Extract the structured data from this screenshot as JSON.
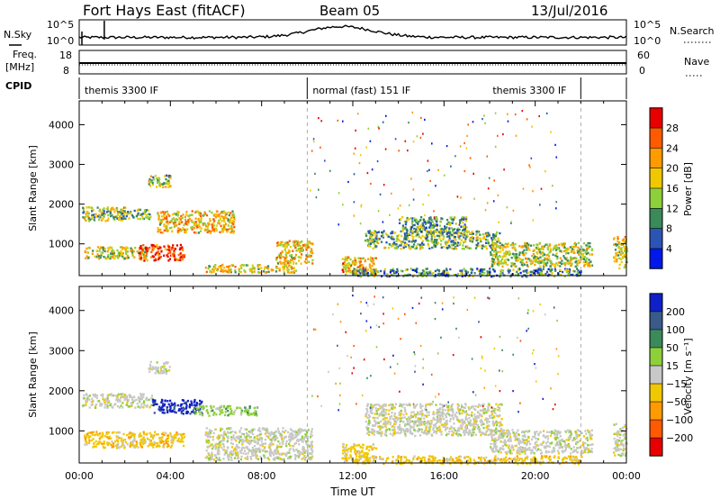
{
  "header": {
    "title": "Fort Hays East (fitACF)",
    "beam": "Beam 05",
    "date": "13/Jul/2016"
  },
  "top_panels": {
    "nsky_label": "N.Sky",
    "nsky_ticks": [
      "10^5",
      "10^0"
    ],
    "nsearch_label": "N.Search",
    "nsearch_ticks": [
      "10^5",
      "10^0"
    ],
    "freq_label": "Freq.",
    "freq_unit": "[MHz]",
    "freq_ticks": [
      "18",
      "8"
    ],
    "nave_label": "Nave",
    "nave_ticks": [
      "60",
      "0"
    ],
    "cpid_label": "CPID",
    "cpid_segments": [
      {
        "text": "themis 3300 IF",
        "start_h": 0,
        "end_h": 10
      },
      {
        "text": "normal (fast) 151 IF",
        "start_h": 10,
        "end_h": 22
      },
      {
        "text": "themis 3300 IF",
        "start_h": 22,
        "end_h": 24
      }
    ]
  },
  "chart_data": [
    {
      "type": "heatmap",
      "name": "power",
      "ylabel": "Slant Range [km]",
      "colorbar_label": "Power [dB]",
      "colorbar_ticks": [
        "28",
        "24",
        "20",
        "16",
        "12",
        "8",
        "4"
      ],
      "colorbar_colors": [
        "#e80000",
        "#ff5a00",
        "#ff9a00",
        "#f0c800",
        "#8ed03a",
        "#3a8a5a",
        "#2b55b5",
        "#0018e8"
      ],
      "x_ticks": [
        "00:00",
        "04:00",
        "08:00",
        "12:00",
        "16:00",
        "20:00",
        "00:00"
      ],
      "xlim": [
        0,
        24
      ],
      "y_ticks": [
        "4000",
        "3000",
        "2000",
        "1000"
      ],
      "ylim": [
        200,
        4600
      ],
      "bands": [
        {
          "t0": 0.1,
          "t1": 2.0,
          "r0": 1600,
          "r1": 1950,
          "level": 0.45
        },
        {
          "t0": 1.8,
          "t1": 3.2,
          "r0": 1650,
          "r1": 1900,
          "level": 0.4
        },
        {
          "t0": 0.2,
          "t1": 3.0,
          "r0": 650,
          "r1": 950,
          "level": 0.5
        },
        {
          "t0": 2.6,
          "t1": 4.6,
          "r0": 600,
          "r1": 1000,
          "level": 0.85
        },
        {
          "t0": 3.4,
          "t1": 6.8,
          "r0": 1300,
          "r1": 1850,
          "level": 0.6
        },
        {
          "t0": 3.0,
          "t1": 4.0,
          "r0": 2450,
          "r1": 2750,
          "level": 0.45
        },
        {
          "t0": 5.5,
          "t1": 9.5,
          "r0": 300,
          "r1": 500,
          "level": 0.55
        },
        {
          "t0": 8.6,
          "t1": 10.2,
          "r0": 500,
          "r1": 1100,
          "level": 0.6
        },
        {
          "t0": 11.5,
          "t1": 13.0,
          "r0": 250,
          "r1": 700,
          "level": 0.65
        },
        {
          "t0": 12.5,
          "t1": 18.5,
          "r0": 900,
          "r1": 1350,
          "level": 0.4
        },
        {
          "t0": 14.0,
          "t1": 17.0,
          "r0": 1300,
          "r1": 1700,
          "level": 0.35
        },
        {
          "t0": 18.0,
          "t1": 22.5,
          "r0": 450,
          "r1": 1050,
          "level": 0.5
        },
        {
          "t0": 23.4,
          "t1": 24.0,
          "r0": 400,
          "r1": 1200,
          "level": 0.55
        },
        {
          "t0": 12.0,
          "t1": 22.0,
          "r0": 200,
          "r1": 400,
          "level": 0.3
        }
      ]
    },
    {
      "type": "heatmap",
      "name": "velocity",
      "ylabel": "Slant Range [km]",
      "colorbar_label": "Velocity [m s⁻¹]",
      "colorbar_ticks": [
        "200",
        "100",
        "50",
        "15",
        "−15",
        "−50",
        "−100",
        "−200"
      ],
      "colorbar_colors": [
        "#1020c8",
        "#3a5a8a",
        "#3a8a5a",
        "#8ed03a",
        "#c8c8c8",
        "#f0c800",
        "#ff9a00",
        "#ff5a00",
        "#e80000"
      ],
      "x_ticks": [
        "00:00",
        "04:00",
        "08:00",
        "12:00",
        "16:00",
        "20:00",
        "00:00"
      ],
      "xlabel": "Time UT",
      "xlim": [
        0,
        24
      ],
      "y_ticks": [
        "4000",
        "3000",
        "2000",
        "1000"
      ],
      "ylim": [
        200,
        4600
      ],
      "bands": [
        {
          "t0": 0.1,
          "t1": 3.2,
          "r0": 1600,
          "r1": 1950,
          "level": 4
        },
        {
          "t0": 0.2,
          "t1": 4.6,
          "r0": 600,
          "r1": 1000,
          "level": 5
        },
        {
          "t0": 3.2,
          "t1": 5.4,
          "r0": 1450,
          "r1": 1800,
          "level": 0
        },
        {
          "t0": 5.0,
          "t1": 7.8,
          "r0": 1400,
          "r1": 1650,
          "level": 3
        },
        {
          "t0": 3.0,
          "t1": 4.0,
          "r0": 2450,
          "r1": 2750,
          "level": 4
        },
        {
          "t0": 5.5,
          "t1": 10.2,
          "r0": 300,
          "r1": 1100,
          "level": 4
        },
        {
          "t0": 11.5,
          "t1": 13.0,
          "r0": 250,
          "r1": 700,
          "level": 5
        },
        {
          "t0": 12.5,
          "t1": 18.5,
          "r0": 900,
          "r1": 1700,
          "level": 4
        },
        {
          "t0": 18.0,
          "t1": 22.5,
          "r0": 450,
          "r1": 1050,
          "level": 4
        },
        {
          "t0": 23.4,
          "t1": 24.0,
          "r0": 400,
          "r1": 1200,
          "level": 4
        },
        {
          "t0": 12.0,
          "t1": 22.0,
          "r0": 200,
          "r1": 400,
          "level": 5
        }
      ]
    }
  ]
}
